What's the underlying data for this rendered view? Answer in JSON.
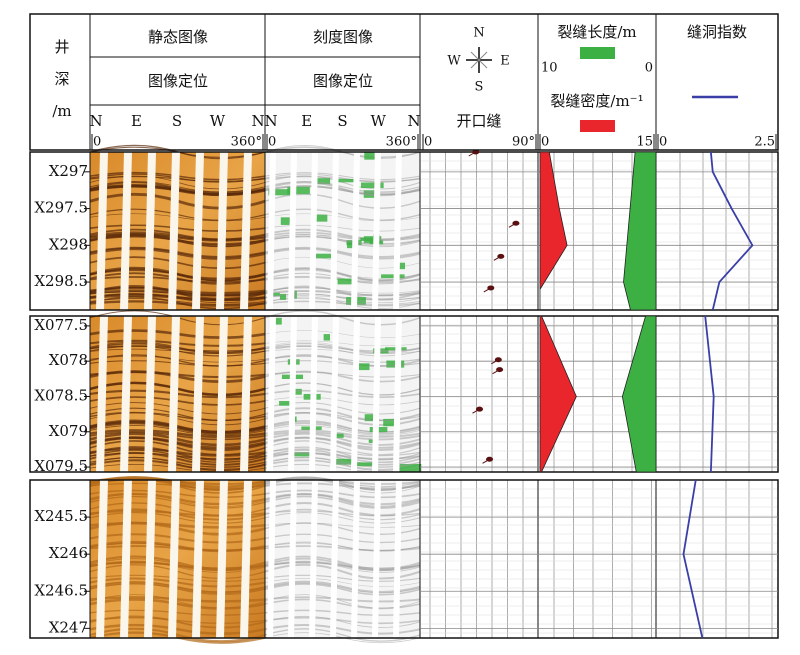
{
  "depth_column": {
    "label_lines": [
      "井",
      "深",
      "/m"
    ]
  },
  "tracks": {
    "static_image": {
      "title": "静态图像",
      "subtitle": "图像定位",
      "azimuth_labels": [
        "N",
        "E",
        "S",
        "W",
        "N"
      ],
      "xlim": [
        0,
        360
      ],
      "xticks": [
        {
          "value": 0,
          "label": "0"
        },
        {
          "value": 360,
          "label": "360°"
        }
      ]
    },
    "scaled_image": {
      "title": "刻度图像",
      "subtitle": "图像定位",
      "azimuth_labels": [
        "N",
        "E",
        "S",
        "W",
        "N"
      ],
      "xlim": [
        0,
        360
      ],
      "xticks": [
        {
          "value": 0,
          "label": "0"
        },
        {
          "value": 360,
          "label": "360°"
        }
      ]
    },
    "dip": {
      "compass": [
        "N",
        "W",
        "E",
        "S"
      ],
      "title": "开口缝",
      "color": "#5a1010",
      "xlim": [
        0,
        90
      ],
      "xticks": [
        {
          "value": 0,
          "label": "0"
        },
        {
          "value": 90,
          "label": "90°"
        }
      ]
    },
    "fracture": {
      "length_title": "裂缝长度/m",
      "length_color": "#3cb043",
      "length_xlim": [
        10,
        0
      ],
      "length_xticks": [
        10,
        0
      ],
      "density_title": "裂缝密度/m⁻¹",
      "density_color": "#e8262b",
      "density_xlim": [
        0,
        15
      ],
      "density_xticks": [
        0,
        15
      ]
    },
    "index": {
      "title": "缝洞指数",
      "color": "#3a3fa8",
      "xlim": [
        0,
        2.5
      ],
      "xticks": [
        0,
        2.5
      ]
    }
  },
  "sections": [
    {
      "ylim": [
        296.73,
        298.88
      ],
      "yticks": [
        {
          "value": 297,
          "label": "X297"
        },
        {
          "value": 297.5,
          "label": "X297.5"
        },
        {
          "value": 298,
          "label": "X298"
        },
        {
          "value": 298.5,
          "label": "X298.5"
        }
      ],
      "dips": {
        "depth": [
          296.73,
          297.7,
          298.15,
          298.58
        ],
        "dip": [
          42,
          74,
          62,
          54
        ]
      },
      "density": {
        "depth": [
          296.73,
          297.5,
          298,
          298.6,
          298.88
        ],
        "values": [
          1.2,
          2.5,
          3.5,
          0,
          0
        ]
      },
      "length": {
        "depth": [
          296.73,
          298.5,
          298.88
        ],
        "values": [
          1.8,
          2.8,
          2.2
        ]
      },
      "index": {
        "depth": [
          296.73,
          297,
          297.5,
          298,
          298.5,
          298.88
        ],
        "values": [
          1.12,
          1.16,
          1.56,
          2.0,
          1.3,
          1.16
        ]
      }
    },
    {
      "ylim": [
        77.36,
        79.57
      ],
      "yticks": [
        {
          "value": 77.5,
          "label": "X077.5"
        },
        {
          "value": 78,
          "label": "X078"
        },
        {
          "value": 78.5,
          "label": "X078.5"
        },
        {
          "value": 79,
          "label": "X079"
        },
        {
          "value": 79.5,
          "label": "X079.5"
        }
      ],
      "dips": {
        "depth": [
          77.98,
          78.12,
          78.68,
          79.39
        ],
        "dip": [
          60,
          61,
          45,
          53
        ]
      },
      "density": {
        "depth": [
          77.36,
          78.5,
          79.57
        ],
        "values": [
          0.2,
          4.7,
          0.2
        ]
      },
      "length": {
        "depth": [
          77.36,
          78.5,
          79.57
        ],
        "values": [
          0.9,
          2.9,
          1.7
        ]
      },
      "index": {
        "depth": [
          77.36,
          78.5,
          79.57
        ],
        "values": [
          1.0,
          1.18,
          1.12
        ]
      }
    },
    {
      "ylim": [
        245.0,
        247.13
      ],
      "yticks": [
        {
          "value": 245.5,
          "label": "X245.5"
        },
        {
          "value": 246,
          "label": "X246"
        },
        {
          "value": 246.5,
          "label": "X246.5"
        },
        {
          "value": 247,
          "label": "X247"
        }
      ],
      "index": {
        "depth": [
          245.0,
          246,
          247.13
        ],
        "values": [
          0.8,
          0.54,
          0.94
        ]
      }
    }
  ]
}
